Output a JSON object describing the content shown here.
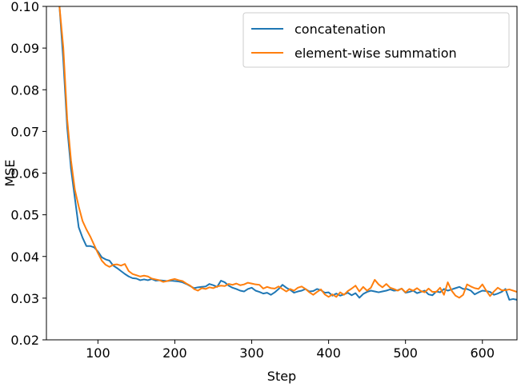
{
  "chart_data": {
    "type": "line",
    "title": "",
    "xlabel": "Step",
    "ylabel": "MSE",
    "xlim": [
      33,
      645
    ],
    "ylim": [
      0.02,
      0.1
    ],
    "xticks": [
      100,
      200,
      300,
      400,
      500,
      600
    ],
    "xtick_labels": [
      "100",
      "200",
      "300",
      "400",
      "500",
      "600"
    ],
    "yticks": [
      0.02,
      0.03,
      0.04,
      0.05,
      0.06,
      0.07,
      0.08,
      0.09,
      0.1
    ],
    "ytick_labels": [
      "0.02",
      "0.03",
      "0.04",
      "0.05",
      "0.06",
      "0.07",
      "0.08",
      "0.09",
      "0.10"
    ],
    "grid": false,
    "legend_position": "top-right",
    "series": [
      {
        "name": "concatenation",
        "color": "#1f77b4",
        "x": [
          50,
          55,
          60,
          65,
          70,
          75,
          80,
          85,
          90,
          95,
          100,
          105,
          110,
          115,
          120,
          125,
          130,
          135,
          140,
          145,
          150,
          155,
          160,
          165,
          170,
          175,
          180,
          185,
          190,
          195,
          200,
          205,
          210,
          215,
          220,
          225,
          230,
          235,
          240,
          245,
          250,
          255,
          260,
          265,
          270,
          275,
          280,
          285,
          290,
          295,
          300,
          305,
          310,
          315,
          320,
          325,
          330,
          335,
          340,
          345,
          350,
          355,
          360,
          365,
          370,
          375,
          380,
          385,
          390,
          395,
          400,
          405,
          410,
          415,
          420,
          425,
          430,
          435,
          440,
          445,
          450,
          455,
          460,
          465,
          470,
          475,
          480,
          485,
          490,
          495,
          500,
          505,
          510,
          515,
          520,
          525,
          530,
          535,
          540,
          545,
          550,
          555,
          560,
          565,
          570,
          575,
          580,
          585,
          590,
          595,
          600,
          605,
          610,
          615,
          620,
          625,
          630,
          635,
          640,
          645
        ],
        "values": [
          0.1,
          0.087,
          0.071,
          0.061,
          0.054,
          0.047,
          0.0445,
          0.0425,
          0.0425,
          0.0422,
          0.0412,
          0.0398,
          0.0393,
          0.039,
          0.0378,
          0.0372,
          0.0365,
          0.0358,
          0.0352,
          0.0348,
          0.0347,
          0.0343,
          0.0345,
          0.0343,
          0.0346,
          0.0342,
          0.0343,
          0.0342,
          0.0341,
          0.0342,
          0.0341,
          0.034,
          0.0338,
          0.0334,
          0.0329,
          0.0324,
          0.0326,
          0.0327,
          0.0328,
          0.0334,
          0.0331,
          0.0327,
          0.0342,
          0.0338,
          0.033,
          0.0325,
          0.0322,
          0.0318,
          0.0316,
          0.0322,
          0.0325,
          0.0318,
          0.0315,
          0.0311,
          0.0313,
          0.0308,
          0.0314,
          0.0322,
          0.0332,
          0.0325,
          0.032,
          0.0313,
          0.0316,
          0.0318,
          0.0322,
          0.0316,
          0.0317,
          0.0322,
          0.0319,
          0.0313,
          0.0314,
          0.0306,
          0.0311,
          0.0306,
          0.0309,
          0.0313,
          0.0307,
          0.0312,
          0.0301,
          0.031,
          0.0315,
          0.0318,
          0.0316,
          0.0314,
          0.0316,
          0.0318,
          0.0321,
          0.0318,
          0.0319,
          0.0323,
          0.0313,
          0.0315,
          0.0318,
          0.0312,
          0.0315,
          0.0318,
          0.0309,
          0.0307,
          0.0316,
          0.0314,
          0.0322,
          0.0318,
          0.0321,
          0.0324,
          0.0327,
          0.0322,
          0.0322,
          0.0318,
          0.0309,
          0.0314,
          0.0318,
          0.0317,
          0.0315,
          0.0308,
          0.0311,
          0.0315,
          0.0322,
          0.0296,
          0.0298,
          0.0296
        ]
      },
      {
        "name": "element-wise summation",
        "color": "#ff7f0e",
        "x": [
          50,
          55,
          60,
          65,
          70,
          75,
          80,
          85,
          90,
          95,
          100,
          105,
          110,
          115,
          120,
          125,
          130,
          135,
          140,
          145,
          150,
          155,
          160,
          165,
          170,
          175,
          180,
          185,
          190,
          195,
          200,
          205,
          210,
          215,
          220,
          225,
          230,
          235,
          240,
          245,
          250,
          255,
          260,
          265,
          270,
          275,
          280,
          285,
          290,
          295,
          300,
          305,
          310,
          315,
          320,
          325,
          330,
          335,
          340,
          345,
          350,
          355,
          360,
          365,
          370,
          375,
          380,
          385,
          390,
          395,
          400,
          405,
          410,
          415,
          420,
          425,
          430,
          435,
          440,
          445,
          450,
          455,
          460,
          465,
          470,
          475,
          480,
          485,
          490,
          495,
          500,
          505,
          510,
          515,
          520,
          525,
          530,
          535,
          540,
          545,
          550,
          555,
          560,
          565,
          570,
          575,
          580,
          585,
          590,
          595,
          600,
          605,
          610,
          615,
          620,
          625,
          630,
          635,
          640,
          645
        ],
        "values": [
          0.1,
          0.09,
          0.073,
          0.063,
          0.056,
          0.052,
          0.0485,
          0.0465,
          0.0448,
          0.0428,
          0.0408,
          0.039,
          0.038,
          0.0375,
          0.038,
          0.0381,
          0.0378,
          0.0382,
          0.0365,
          0.0358,
          0.0355,
          0.0352,
          0.0354,
          0.0352,
          0.0347,
          0.0345,
          0.0343,
          0.0339,
          0.0341,
          0.0344,
          0.0346,
          0.0343,
          0.0341,
          0.0335,
          0.033,
          0.0322,
          0.0318,
          0.0324,
          0.0322,
          0.0326,
          0.0324,
          0.0328,
          0.033,
          0.0329,
          0.0334,
          0.0332,
          0.0335,
          0.0331,
          0.0333,
          0.0337,
          0.0335,
          0.0333,
          0.0332,
          0.0323,
          0.0327,
          0.0324,
          0.0323,
          0.0328,
          0.0322,
          0.0316,
          0.0322,
          0.0318,
          0.0325,
          0.0328,
          0.0322,
          0.0314,
          0.0308,
          0.0315,
          0.0321,
          0.0309,
          0.0303,
          0.0309,
          0.0303,
          0.0314,
          0.0308,
          0.0317,
          0.0323,
          0.033,
          0.0316,
          0.0327,
          0.0318,
          0.0325,
          0.0344,
          0.0333,
          0.0326,
          0.0334,
          0.0325,
          0.0322,
          0.0318,
          0.0323,
          0.0314,
          0.0322,
          0.0318,
          0.0324,
          0.0317,
          0.0314,
          0.0323,
          0.0315,
          0.0315,
          0.0325,
          0.0308,
          0.0338,
          0.0318,
          0.0306,
          0.0301,
          0.0308,
          0.0333,
          0.0328,
          0.0324,
          0.0322,
          0.0333,
          0.0318,
          0.0305,
          0.0316,
          0.0325,
          0.0319,
          0.0319,
          0.0321,
          0.0318,
          0.0315
        ]
      }
    ]
  }
}
